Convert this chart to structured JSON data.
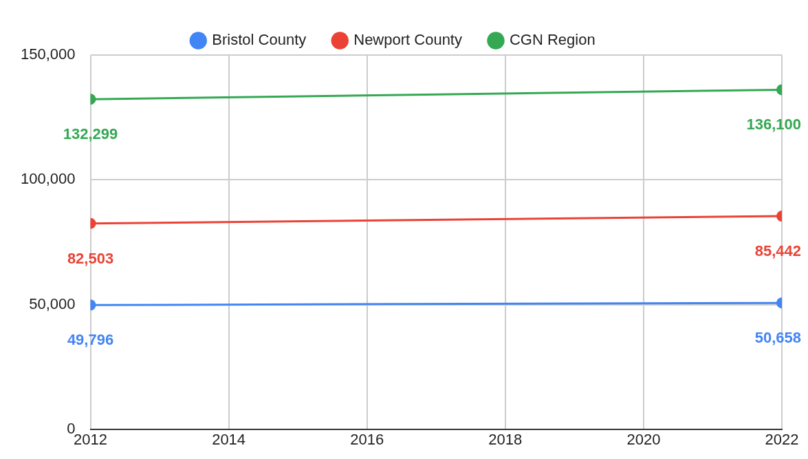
{
  "chart_data": {
    "type": "line",
    "x": [
      2012,
      2022
    ],
    "xlim": [
      2012,
      2022
    ],
    "xticks": [
      2012,
      2014,
      2016,
      2018,
      2020,
      2022
    ],
    "ylim": [
      0,
      150000
    ],
    "yticks": [
      {
        "value": 0,
        "label": "0"
      },
      {
        "value": 50000,
        "label": "50,000"
      },
      {
        "value": 100000,
        "label": "100,000"
      },
      {
        "value": 150000,
        "label": "150,000"
      }
    ],
    "grid": true,
    "legend": "top",
    "marker": "circle",
    "line_style": "solid",
    "series": [
      {
        "name": "Bristol County",
        "color": "#4285f4",
        "values": [
          49796,
          50658
        ],
        "value_labels": [
          "49,796",
          "50,658"
        ]
      },
      {
        "name": "Newport County",
        "color": "#ea4335",
        "values": [
          82503,
          85442
        ],
        "value_labels": [
          "82,503",
          "85,442"
        ]
      },
      {
        "name": "CGN Region",
        "color": "#34a853",
        "values": [
          132299,
          136100
        ],
        "value_labels": [
          "132,299",
          "136,100"
        ]
      }
    ]
  }
}
